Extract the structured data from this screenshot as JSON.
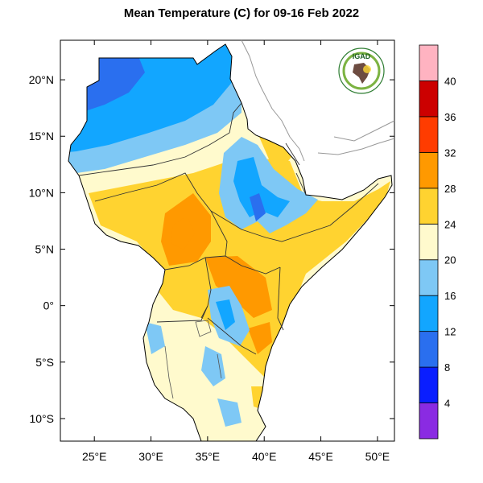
{
  "title": "Mean Temperature (C) for 09-16 Feb 2022",
  "logo": {
    "text": "IGAD"
  },
  "map": {
    "lon_range": [
      22,
      51.5
    ],
    "lat_range": [
      -12,
      23.5
    ],
    "x_ticks": [
      {
        "value": 25,
        "label": "25°E"
      },
      {
        "value": 30,
        "label": "30°E"
      },
      {
        "value": 35,
        "label": "35°E"
      },
      {
        "value": 40,
        "label": "40°E"
      },
      {
        "value": 45,
        "label": "45°E"
      },
      {
        "value": 50,
        "label": "50°E"
      }
    ],
    "y_ticks": [
      {
        "value": 20,
        "label": "20°N"
      },
      {
        "value": 15,
        "label": "15°N"
      },
      {
        "value": 10,
        "label": "10°N"
      },
      {
        "value": 5,
        "label": "5°N"
      },
      {
        "value": 0,
        "label": "0°"
      },
      {
        "value": -5,
        "label": "5°S"
      },
      {
        "value": -10,
        "label": "10°S"
      }
    ]
  },
  "colorbar": {
    "levels": [
      4,
      8,
      12,
      16,
      20,
      24,
      28,
      32,
      36,
      40
    ],
    "colors": [
      "#8a2be2",
      "#0a1eff",
      "#2a6fef",
      "#12a6ff",
      "#7ec8f5",
      "#fffacd",
      "#ffd330",
      "#ff9900",
      "#ff3c00",
      "#cc0000",
      "#ffb3c1"
    ]
  }
}
